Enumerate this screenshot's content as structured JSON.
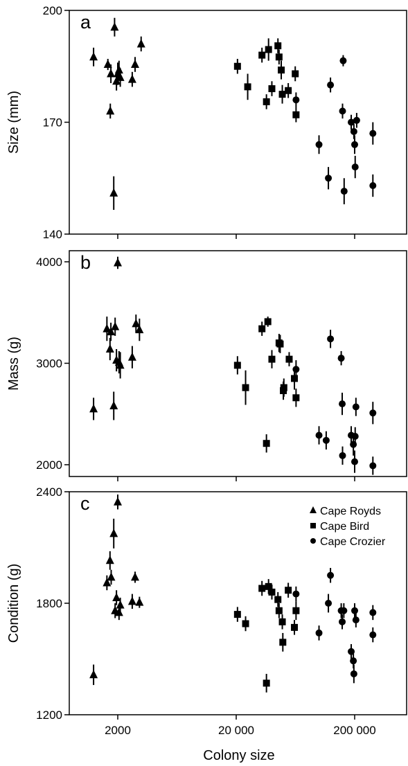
{
  "chart_data": {
    "type": "scatter",
    "xlabel": "Colony size",
    "x_scale": "log",
    "x_ticks": [
      {
        "value": 2000,
        "label": "2000"
      },
      {
        "value": 20000,
        "label": "20 000"
      },
      {
        "value": 200000,
        "label": "200 000"
      }
    ],
    "legend": {
      "placement": "top-right of panel c",
      "entries": [
        {
          "name": "Cape Royds",
          "marker": "triangle"
        },
        {
          "name": "Cape Bird",
          "marker": "square"
        },
        {
          "name": "Cape Crozier",
          "marker": "circle"
        }
      ]
    },
    "panels": [
      {
        "letter": "a",
        "ylabel": "Size (mm)",
        "ylim": [
          140,
          200
        ],
        "yticks": [
          140,
          170,
          200
        ],
        "series": [
          {
            "name": "Cape Royds",
            "marker": "triangle",
            "points": [
              {
                "x": 1250,
                "y": 187.5,
                "err": 2.5
              },
              {
                "x": 1650,
                "y": 185.5,
                "err": 1.5
              },
              {
                "x": 1750,
                "y": 183,
                "err": 2.5
              },
              {
                "x": 1730,
                "y": 173,
                "err": 2
              },
              {
                "x": 1880,
                "y": 195.5,
                "err": 2.5
              },
              {
                "x": 1950,
                "y": 181,
                "err": 2.5
              },
              {
                "x": 2000,
                "y": 183,
                "err": 3
              },
              {
                "x": 2050,
                "y": 184,
                "err": 2.5
              },
              {
                "x": 2100,
                "y": 182,
                "err": 2.5
              },
              {
                "x": 1850,
                "y": 151,
                "err": 4.5
              },
              {
                "x": 2650,
                "y": 181.5,
                "err": 2
              },
              {
                "x": 2800,
                "y": 185.5,
                "err": 2
              },
              {
                "x": 3150,
                "y": 191,
                "err": 2
              }
            ]
          },
          {
            "name": "Cape Bird",
            "marker": "square",
            "points": [
              {
                "x": 20500,
                "y": 185,
                "err": 2
              },
              {
                "x": 25000,
                "y": 179.5,
                "err": 3.5
              },
              {
                "x": 33000,
                "y": 188,
                "err": 2
              },
              {
                "x": 36000,
                "y": 175.5,
                "err": 2
              },
              {
                "x": 37500,
                "y": 189.5,
                "err": 3
              },
              {
                "x": 40000,
                "y": 179,
                "err": 2
              },
              {
                "x": 45000,
                "y": 190.5,
                "err": 2
              },
              {
                "x": 46000,
                "y": 187.5,
                "err": 2
              },
              {
                "x": 48000,
                "y": 184,
                "err": 2.5
              },
              {
                "x": 49000,
                "y": 177.5,
                "err": 2.5
              },
              {
                "x": 55000,
                "y": 178.5,
                "err": 2
              },
              {
                "x": 63000,
                "y": 183,
                "err": 2
              },
              {
                "x": 64000,
                "y": 172,
                "err": 2
              }
            ]
          },
          {
            "name": "Cape Crozier",
            "marker": "circle",
            "points": [
              {
                "x": 64000,
                "y": 176,
                "err": 2
              },
              {
                "x": 100000,
                "y": 164,
                "err": 2.5
              },
              {
                "x": 120000,
                "y": 155,
                "err": 3
              },
              {
                "x": 125000,
                "y": 180,
                "err": 2
              },
              {
                "x": 158000,
                "y": 173,
                "err": 2
              },
              {
                "x": 160000,
                "y": 186.5,
                "err": 1.5
              },
              {
                "x": 163000,
                "y": 151.5,
                "err": 3.5
              },
              {
                "x": 187000,
                "y": 170,
                "err": 2
              },
              {
                "x": 197000,
                "y": 167.5,
                "err": 2
              },
              {
                "x": 200000,
                "y": 164,
                "err": 2.5
              },
              {
                "x": 202000,
                "y": 158,
                "err": 3
              },
              {
                "x": 208000,
                "y": 170.5,
                "err": 2
              },
              {
                "x": 285000,
                "y": 167,
                "err": 3
              },
              {
                "x": 285000,
                "y": 153,
                "err": 3
              }
            ]
          }
        ]
      },
      {
        "letter": "b",
        "ylabel": "Mass (g)",
        "ylim": [
          1900,
          4100
        ],
        "yticks": [
          2000,
          3000,
          4000
        ],
        "series": [
          {
            "name": "Cape Royds",
            "marker": "triangle",
            "points": [
              {
                "x": 1250,
                "y": 2550,
                "err": 110
              },
              {
                "x": 1620,
                "y": 3340,
                "err": 120
              },
              {
                "x": 1720,
                "y": 3140,
                "err": 110
              },
              {
                "x": 1750,
                "y": 3310,
                "err": 90
              },
              {
                "x": 1850,
                "y": 2580,
                "err": 140
              },
              {
                "x": 1900,
                "y": 3360,
                "err": 90
              },
              {
                "x": 1950,
                "y": 3030,
                "err": 110
              },
              {
                "x": 2000,
                "y": 3990,
                "err": 60
              },
              {
                "x": 2050,
                "y": 3010,
                "err": 110
              },
              {
                "x": 2100,
                "y": 2980,
                "err": 130
              },
              {
                "x": 2650,
                "y": 3060,
                "err": 110
              },
              {
                "x": 2850,
                "y": 3390,
                "err": 90
              },
              {
                "x": 3050,
                "y": 3330,
                "err": 110
              }
            ]
          },
          {
            "name": "Cape Bird",
            "marker": "square",
            "points": [
              {
                "x": 20500,
                "y": 2980,
                "err": 90
              },
              {
                "x": 24000,
                "y": 2760,
                "err": 170
              },
              {
                "x": 33000,
                "y": 3340,
                "err": 70
              },
              {
                "x": 36000,
                "y": 2210,
                "err": 90
              },
              {
                "x": 37000,
                "y": 3410,
                "err": 50
              },
              {
                "x": 40000,
                "y": 3040,
                "err": 90
              },
              {
                "x": 46000,
                "y": 3200,
                "err": 90
              },
              {
                "x": 47000,
                "y": 3190,
                "err": 90
              },
              {
                "x": 50000,
                "y": 2730,
                "err": 90
              },
              {
                "x": 50500,
                "y": 2760,
                "err": 90
              },
              {
                "x": 56000,
                "y": 3040,
                "err": 70
              },
              {
                "x": 62000,
                "y": 2850,
                "err": 110
              },
              {
                "x": 64000,
                "y": 2660,
                "err": 90
              }
            ]
          },
          {
            "name": "Cape Crozier",
            "marker": "circle",
            "points": [
              {
                "x": 64000,
                "y": 2940,
                "err": 90
              },
              {
                "x": 100000,
                "y": 2290,
                "err": 90
              },
              {
                "x": 115000,
                "y": 2240,
                "err": 90
              },
              {
                "x": 125000,
                "y": 3240,
                "err": 90
              },
              {
                "x": 154000,
                "y": 3050,
                "err": 70
              },
              {
                "x": 157000,
                "y": 2600,
                "err": 110
              },
              {
                "x": 158000,
                "y": 2090,
                "err": 90
              },
              {
                "x": 187000,
                "y": 2290,
                "err": 90
              },
              {
                "x": 195000,
                "y": 2200,
                "err": 110
              },
              {
                "x": 200000,
                "y": 2030,
                "err": 110
              },
              {
                "x": 202000,
                "y": 2280,
                "err": 90
              },
              {
                "x": 205000,
                "y": 2570,
                "err": 90
              },
              {
                "x": 285000,
                "y": 2510,
                "err": 110
              },
              {
                "x": 285000,
                "y": 1990,
                "err": 90
              }
            ]
          }
        ]
      },
      {
        "letter": "c",
        "ylabel": "Condition (g)",
        "ylim": [
          1200,
          2400
        ],
        "yticks": [
          1200,
          1800,
          2400
        ],
        "series": [
          {
            "name": "Cape Royds",
            "marker": "triangle",
            "points": [
              {
                "x": 1250,
                "y": 1415,
                "err": 55
              },
              {
                "x": 1620,
                "y": 1910,
                "err": 40
              },
              {
                "x": 1720,
                "y": 2030,
                "err": 50
              },
              {
                "x": 1760,
                "y": 1940,
                "err": 40
              },
              {
                "x": 1850,
                "y": 2175,
                "err": 80
              },
              {
                "x": 1900,
                "y": 1760,
                "err": 40
              },
              {
                "x": 1950,
                "y": 1830,
                "err": 40
              },
              {
                "x": 2000,
                "y": 2345,
                "err": 40
              },
              {
                "x": 2050,
                "y": 1750,
                "err": 40
              },
              {
                "x": 2100,
                "y": 1790,
                "err": 40
              },
              {
                "x": 2650,
                "y": 1810,
                "err": 40
              },
              {
                "x": 2800,
                "y": 1940,
                "err": 30
              },
              {
                "x": 3050,
                "y": 1805,
                "err": 30
              }
            ]
          },
          {
            "name": "Cape Bird",
            "marker": "square",
            "points": [
              {
                "x": 20500,
                "y": 1740,
                "err": 40
              },
              {
                "x": 24000,
                "y": 1690,
                "err": 40
              },
              {
                "x": 33000,
                "y": 1880,
                "err": 40
              },
              {
                "x": 36000,
                "y": 1370,
                "err": 50
              },
              {
                "x": 37500,
                "y": 1890,
                "err": 40
              },
              {
                "x": 40000,
                "y": 1860,
                "err": 40
              },
              {
                "x": 45000,
                "y": 1820,
                "err": 40
              },
              {
                "x": 46000,
                "y": 1760,
                "err": 40
              },
              {
                "x": 49000,
                "y": 1700,
                "err": 40
              },
              {
                "x": 49500,
                "y": 1590,
                "err": 50
              },
              {
                "x": 55000,
                "y": 1870,
                "err": 40
              },
              {
                "x": 62000,
                "y": 1670,
                "err": 40
              },
              {
                "x": 64000,
                "y": 1760,
                "err": 50
              }
            ]
          },
          {
            "name": "Cape Crozier",
            "marker": "circle",
            "points": [
              {
                "x": 64000,
                "y": 1850,
                "err": 40
              },
              {
                "x": 100000,
                "y": 1640,
                "err": 40
              },
              {
                "x": 120000,
                "y": 1800,
                "err": 50
              },
              {
                "x": 125000,
                "y": 1950,
                "err": 40
              },
              {
                "x": 154000,
                "y": 1760,
                "err": 40
              },
              {
                "x": 157000,
                "y": 1700,
                "err": 40
              },
              {
                "x": 162000,
                "y": 1760,
                "err": 40
              },
              {
                "x": 187000,
                "y": 1540,
                "err": 40
              },
              {
                "x": 195000,
                "y": 1490,
                "err": 40
              },
              {
                "x": 197000,
                "y": 1420,
                "err": 50
              },
              {
                "x": 200000,
                "y": 1760,
                "err": 40
              },
              {
                "x": 205000,
                "y": 1710,
                "err": 40
              },
              {
                "x": 285000,
                "y": 1750,
                "err": 40
              },
              {
                "x": 285000,
                "y": 1630,
                "err": 40
              }
            ]
          }
        ]
      }
    ]
  }
}
